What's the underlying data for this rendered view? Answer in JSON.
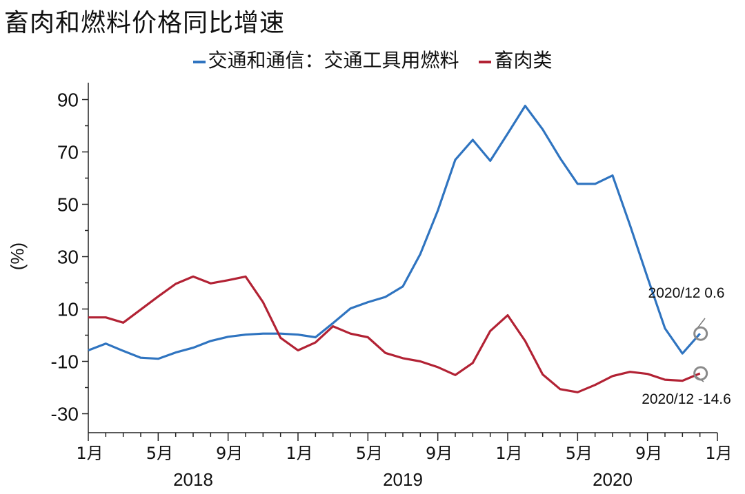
{
  "chart_data": {
    "type": "line",
    "title": "畜肉和燃料价格同比增速",
    "ylabel": "(%)",
    "xlabel": "",
    "ylim": [
      -35,
      95
    ],
    "y_ticks": [
      90,
      70,
      50,
      30,
      10,
      -10,
      -30
    ],
    "x_range": [
      "2018-01",
      "2021-01"
    ],
    "x_tick_labels": [
      "1月",
      "5月",
      "9月",
      "1月",
      "5月",
      "9月",
      "1月",
      "5月",
      "9月",
      "1月"
    ],
    "x_tick_months": [
      "2018-01",
      "2018-05",
      "2018-09",
      "2019-01",
      "2019-05",
      "2019-09",
      "2020-01",
      "2020-05",
      "2020-09",
      "2021-01"
    ],
    "years": [
      {
        "label": "2018",
        "center": "2018-07"
      },
      {
        "label": "2019",
        "center": "2019-07"
      },
      {
        "label": "2020",
        "center": "2020-07"
      }
    ],
    "legend_position": "top-center",
    "grid": false,
    "series": [
      {
        "name": "交通和通信：交通工具用燃料",
        "color": "#2f74c0",
        "x": [
          "2018-01",
          "2018-02",
          "2018-03",
          "2018-04",
          "2018-05",
          "2018-06",
          "2018-07",
          "2018-08",
          "2018-09",
          "2018-10",
          "2018-11",
          "2018-12",
          "2019-01",
          "2019-02",
          "2019-03",
          "2019-04",
          "2019-05",
          "2019-06",
          "2019-07",
          "2019-08",
          "2019-09",
          "2019-10",
          "2019-11",
          "2019-12",
          "2020-01",
          "2020-02",
          "2020-03",
          "2020-04",
          "2020-05",
          "2020-06",
          "2020-07",
          "2020-08",
          "2020-09",
          "2020-10",
          "2020-11",
          "2020-12"
        ],
        "values": [
          -5.8,
          -3.2,
          -6.0,
          -8.6,
          -9.0,
          -6.6,
          -4.8,
          -2.2,
          -0.6,
          0.2,
          0.6,
          0.6,
          0.2,
          -0.8,
          4.6,
          10.2,
          12.6,
          14.6,
          18.6,
          31.0,
          47.6,
          67.0,
          74.6,
          66.6,
          77.0,
          87.6,
          78.6,
          67.6,
          57.8,
          57.8,
          61.0,
          42.0,
          22.0,
          2.6,
          -7.0,
          0.6
        ]
      },
      {
        "name": "畜肉类",
        "color": "#b22234",
        "x": [
          "2018-01",
          "2018-02",
          "2018-03",
          "2018-04",
          "2018-05",
          "2018-06",
          "2018-07",
          "2018-08",
          "2018-09",
          "2018-10",
          "2018-11",
          "2018-12",
          "2019-01",
          "2019-02",
          "2019-03",
          "2019-04",
          "2019-05",
          "2019-06",
          "2019-07",
          "2019-08",
          "2019-09",
          "2019-10",
          "2019-11",
          "2019-12",
          "2020-01",
          "2020-02",
          "2020-03",
          "2020-04",
          "2020-05",
          "2020-06",
          "2020-07",
          "2020-08",
          "2020-09",
          "2020-10",
          "2020-11",
          "2020-12"
        ],
        "values": [
          6.8,
          6.8,
          4.8,
          9.8,
          14.8,
          19.6,
          22.4,
          19.8,
          21.0,
          22.4,
          12.6,
          -1.0,
          -5.8,
          -2.8,
          3.4,
          0.6,
          -0.8,
          -6.8,
          -8.8,
          -10.0,
          -12.2,
          -15.2,
          -10.6,
          1.6,
          7.6,
          -2.2,
          -15.0,
          -20.6,
          -21.8,
          -19.0,
          -15.6,
          -14.0,
          -14.8,
          -17.0,
          -17.4,
          -14.6
        ]
      }
    ],
    "annotations": [
      {
        "text": "2020/12 0.6",
        "x": "2020-12",
        "y": 0.6,
        "series": "交通和通信：交通工具用燃料"
      },
      {
        "text": "2020/12 -14.6",
        "x": "2020-12",
        "y": -14.6,
        "series": "畜肉类"
      }
    ]
  }
}
